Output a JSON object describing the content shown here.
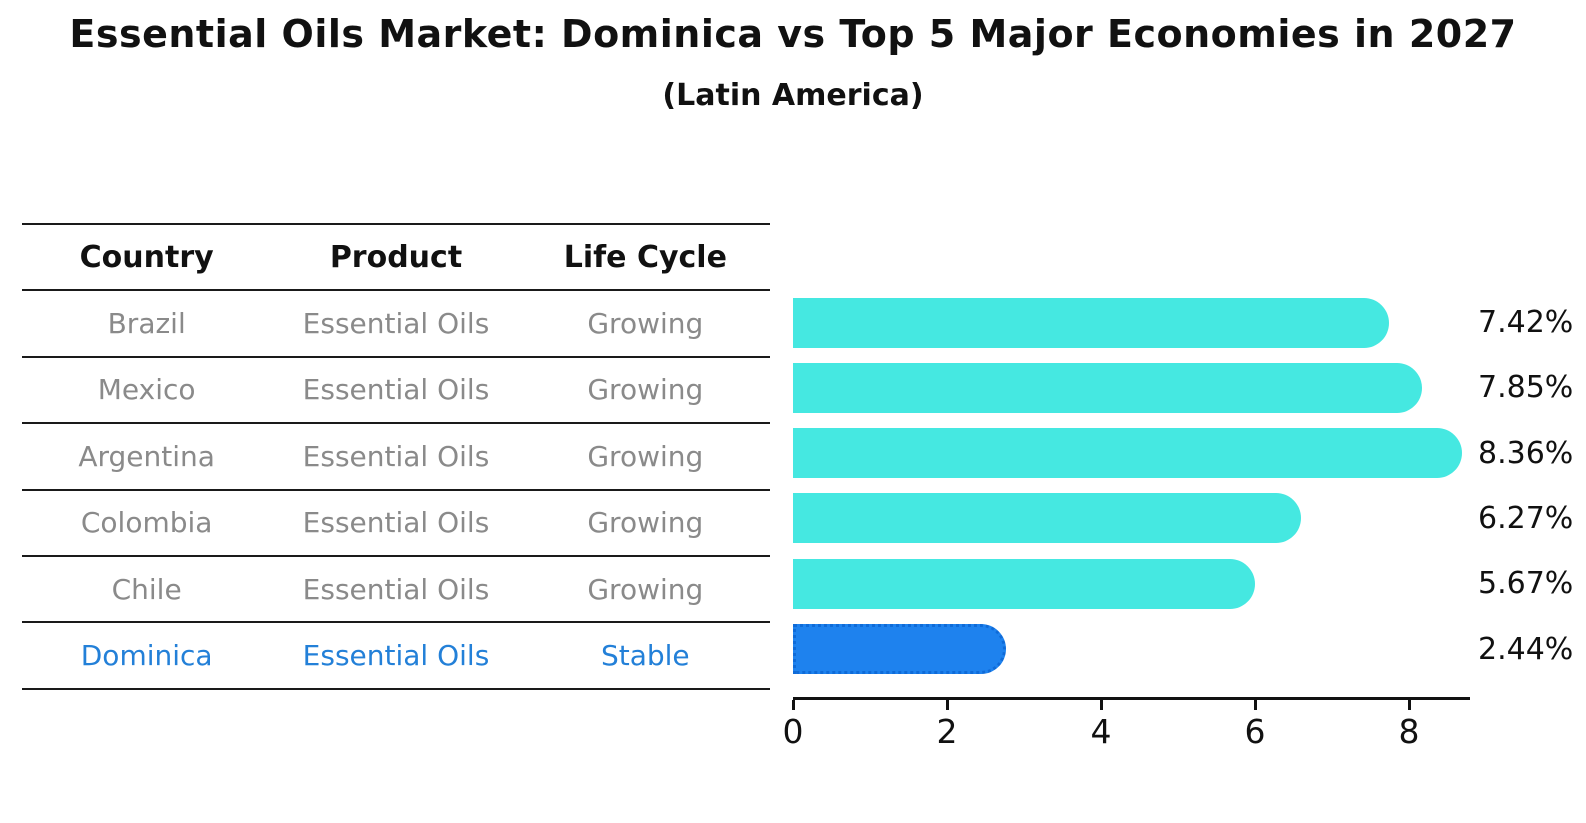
{
  "title": "Essential Oils Market: Dominica vs Top 5 Major Economies in 2027",
  "subtitle": "(Latin America)",
  "table": {
    "headers": [
      "Country",
      "Product",
      "Life Cycle"
    ],
    "rows": [
      {
        "country": "Brazil",
        "product": "Essential Oils",
        "life_cycle": "Growing"
      },
      {
        "country": "Mexico",
        "product": "Essential Oils",
        "life_cycle": "Growing"
      },
      {
        "country": "Argentina",
        "product": "Essential Oils",
        "life_cycle": "Growing"
      },
      {
        "country": "Colombia",
        "product": "Essential Oils",
        "life_cycle": "Growing"
      },
      {
        "country": "Chile",
        "product": "Essential Oils",
        "life_cycle": "Growing"
      },
      {
        "country": "Dominica",
        "product": "Essential Oils",
        "life_cycle": "Stable"
      }
    ],
    "highlight_row_index": 5
  },
  "chart_data": {
    "type": "bar",
    "orientation": "horizontal",
    "categories": [
      "Brazil",
      "Mexico",
      "Argentina",
      "Colombia",
      "Chile",
      "Dominica"
    ],
    "values": [
      7.42,
      7.85,
      8.36,
      6.27,
      5.67,
      2.44
    ],
    "value_labels": [
      "7.42%",
      "7.85%",
      "8.36%",
      "6.27%",
      "5.67%",
      "2.44%"
    ],
    "x_ticks": [
      "0",
      "2",
      "4",
      "6",
      "8"
    ],
    "xlim": [
      0,
      8.8
    ],
    "grid": false,
    "legend": false,
    "highlight_index": 5,
    "bar_color": "#45E8E1",
    "highlight_bar_color": "#1E82EE",
    "highlight_border_color": "#0F6BD8",
    "value_label_color": "#111111"
  },
  "colors": {
    "background": "#ffffff",
    "title_text": "#111111",
    "table_header_text": "#111111",
    "table_body_text": "#8a8a8a",
    "highlight_text": "#2380D8",
    "table_line": "#1a1a1a",
    "axis": "#111111"
  }
}
